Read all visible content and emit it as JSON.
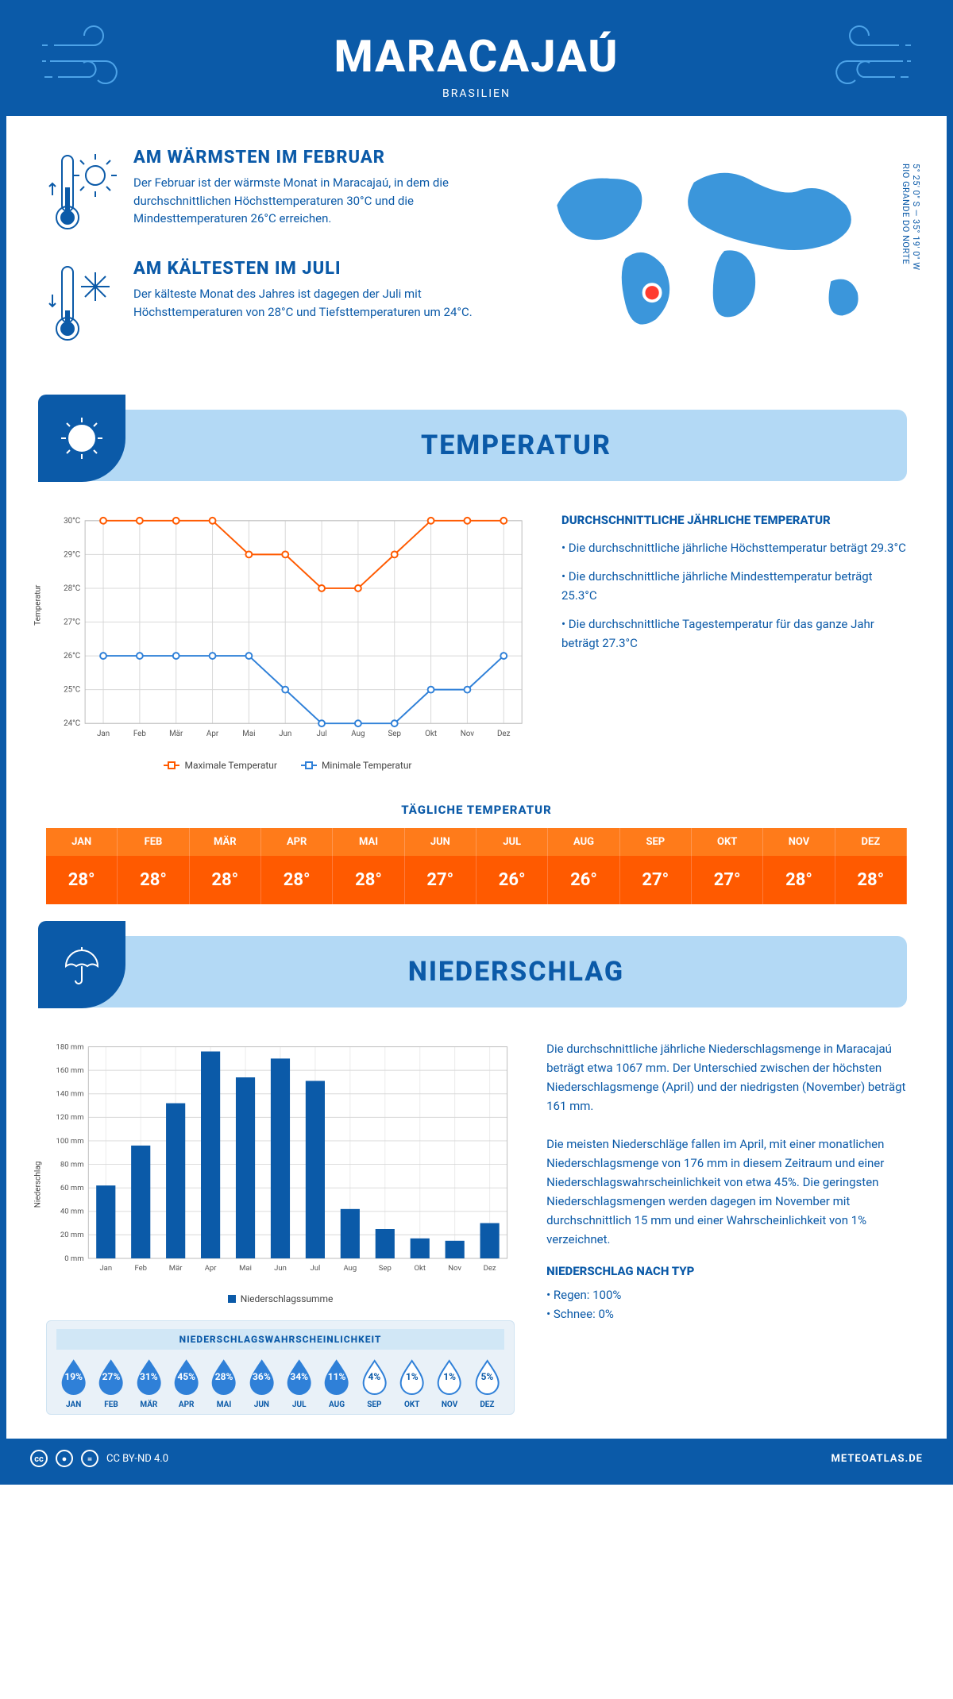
{
  "header": {
    "title": "MARACAJAÚ",
    "subtitle": "BRASILIEN"
  },
  "coords": {
    "text": "5° 25' 0\" S — 35° 19' 0\" W",
    "region": "RIO GRANDE DO NORTE"
  },
  "facts": {
    "warm": {
      "title": "AM WÄRMSTEN IM FEBRUAR",
      "text": "Der Februar ist der wärmste Monat in Maracajaú, in dem die durchschnittlichen Höchsttemperaturen 30°C und die Mindesttemperaturen 26°C erreichen."
    },
    "cold": {
      "title": "AM KÄLTESTEN IM JULI",
      "text": "Der kälteste Monat des Jahres ist dagegen der Juli mit Höchsttemperaturen von 28°C und Tiefsttemperaturen um 24°C."
    }
  },
  "sections": {
    "temp": "TEMPERATUR",
    "precip": "NIEDERSCHLAG"
  },
  "months": [
    "Jan",
    "Feb",
    "Mär",
    "Apr",
    "Mai",
    "Jun",
    "Jul",
    "Aug",
    "Sep",
    "Okt",
    "Nov",
    "Dez"
  ],
  "months_upper": [
    "JAN",
    "FEB",
    "MÄR",
    "APR",
    "MAI",
    "JUN",
    "JUL",
    "AUG",
    "SEP",
    "OKT",
    "NOV",
    "DEZ"
  ],
  "temp_chart": {
    "type": "line",
    "ylabel": "Temperatur",
    "ylim": [
      24,
      30
    ],
    "ytick_step": 1,
    "ytick_labels": [
      "24°C",
      "25°C",
      "26°C",
      "27°C",
      "28°C",
      "29°C",
      "30°C"
    ],
    "series": {
      "max": {
        "label": "Maximale Temperatur",
        "color": "#ff5a00",
        "values": [
          30,
          30,
          30,
          30,
          29,
          29,
          28,
          28,
          29,
          30,
          30,
          30
        ]
      },
      "min": {
        "label": "Minimale Temperatur",
        "color": "#2f80d8",
        "values": [
          26,
          26,
          26,
          26,
          26,
          25,
          24,
          24,
          24,
          25,
          25,
          26
        ]
      }
    },
    "background_color": "#ffffff",
    "grid_color": "#d8d8d8"
  },
  "temp_facts": {
    "title": "DURCHSCHNITTLICHE JÄHRLICHE TEMPERATUR",
    "bullets": [
      "• Die durchschnittliche jährliche Höchsttemperatur beträgt 29.3°C",
      "• Die durchschnittliche jährliche Mindesttemperatur beträgt 25.3°C",
      "• Die durchschnittliche Tagestemperatur für das ganze Jahr beträgt 27.3°C"
    ]
  },
  "daily": {
    "title": "TÄGLICHE TEMPERATUR",
    "values": [
      "28°",
      "28°",
      "28°",
      "28°",
      "28°",
      "27°",
      "26°",
      "26°",
      "27°",
      "27°",
      "28°",
      "28°"
    ],
    "header_bg": "#ff7b1a",
    "value_bg": "#ff5a00"
  },
  "precip_chart": {
    "type": "bar",
    "ylabel": "Niederschlag",
    "ylim": [
      0,
      180
    ],
    "ytick_step": 20,
    "ytick_labels": [
      "0 mm",
      "20 mm",
      "40 mm",
      "60 mm",
      "80 mm",
      "100 mm",
      "120 mm",
      "140 mm",
      "160 mm",
      "180 mm"
    ],
    "values": [
      62,
      96,
      132,
      176,
      154,
      170,
      151,
      42,
      25,
      17,
      15,
      30
    ],
    "bar_color": "#0b5aa8",
    "legend": "Niederschlagssumme",
    "grid_color": "#d8d8d8"
  },
  "precip_text": {
    "p1": "Die durchschnittliche jährliche Niederschlagsmenge in Maracajaú beträgt etwa 1067 mm. Der Unterschied zwischen der höchsten Niederschlagsmenge (April) und der niedrigsten (November) beträgt 161 mm.",
    "p2": "Die meisten Niederschläge fallen im April, mit einer monatlichen Niederschlagsmenge von 176 mm in diesem Zeitraum und einer Niederschlagswahrscheinlichkeit von etwa 45%. Die geringsten Niederschlagsmengen werden dagegen im November mit durchschnittlich 15 mm und einer Wahrscheinlichkeit von 1% verzeichnet.",
    "sub": "NIEDERSCHLAG NACH TYP",
    "rain": "• Regen: 100%",
    "snow": "• Schnee: 0%"
  },
  "prob": {
    "title": "NIEDERSCHLAGSWAHRSCHEINLICHKEIT",
    "values": [
      "19%",
      "27%",
      "31%",
      "45%",
      "28%",
      "36%",
      "34%",
      "11%",
      "4%",
      "1%",
      "1%",
      "5%"
    ],
    "filled": [
      true,
      true,
      true,
      true,
      true,
      true,
      true,
      true,
      false,
      false,
      false,
      false
    ],
    "fill_color": "#2f80d8",
    "empty_color": "#ffffff",
    "empty_stroke": "#2f80d8"
  },
  "footer": {
    "license": "CC BY-ND 4.0",
    "site": "METEOATLAS.DE"
  }
}
